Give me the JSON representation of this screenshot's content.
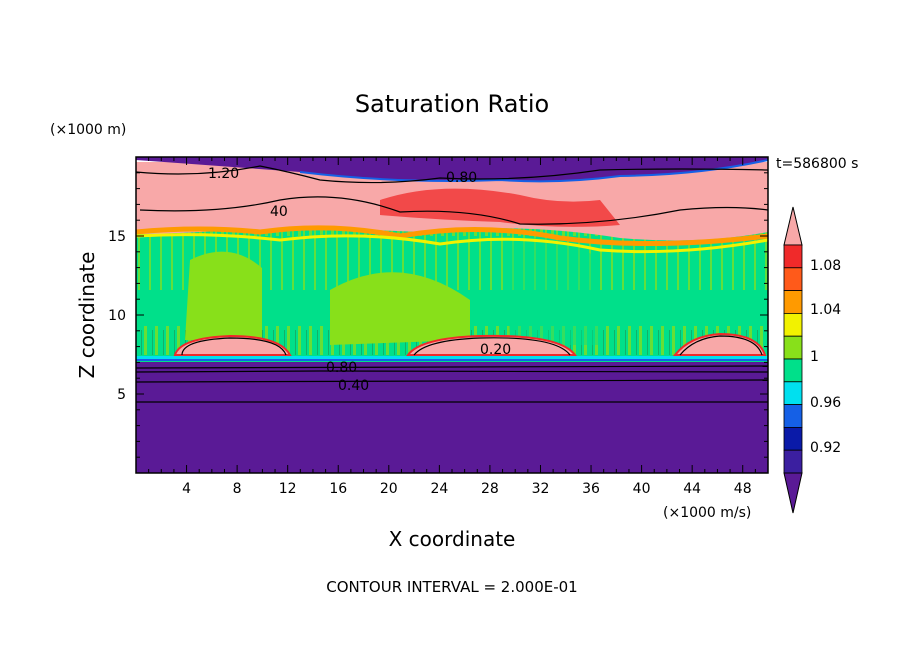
{
  "chart_data": {
    "type": "heatmap",
    "title": "Saturation Ratio",
    "xlabel": "X coordinate",
    "ylabel": "Z coordinate",
    "x_unit": "(×1000 m/s)",
    "y_unit": "(×1000 m)",
    "time_label": "t=586800 s",
    "footer": "CONTOUR INTERVAL = 2.000E-01",
    "xlim": [
      0,
      50
    ],
    "ylim": [
      0,
      20
    ],
    "x_ticks": [
      4,
      8,
      12,
      16,
      20,
      24,
      28,
      32,
      36,
      40,
      44,
      48
    ],
    "y_ticks": [
      5,
      10,
      15
    ],
    "colorbar": {
      "labels": [
        "0.92",
        "0.96",
        "1",
        "1.04",
        "1.08"
      ],
      "colors": [
        "#5a1a96",
        "#3b1fa0",
        "#0a1aa8",
        "#1560e6",
        "#00e0ef",
        "#00e08a",
        "#88e01a",
        "#f2f200",
        "#ff9a00",
        "#ff5a1a",
        "#f02a2a",
        "#f8a8a8"
      ]
    },
    "contour_labels": [
      "1.20",
      "0.80",
      "40",
      "0.20",
      "0.80",
      "0.40"
    ],
    "layers": [
      {
        "z_range": [
          0,
          7.2
        ],
        "value": "< 0.92"
      },
      {
        "z_range": [
          7.2,
          15.5
        ],
        "value": "≈ 0.96 – 1.02"
      },
      {
        "z_range": [
          15.5,
          19.0
        ],
        "value": "≈ 1.04 – 1.20"
      },
      {
        "z_range": [
          19.0,
          20
        ],
        "value": "< 0.92"
      }
    ]
  }
}
